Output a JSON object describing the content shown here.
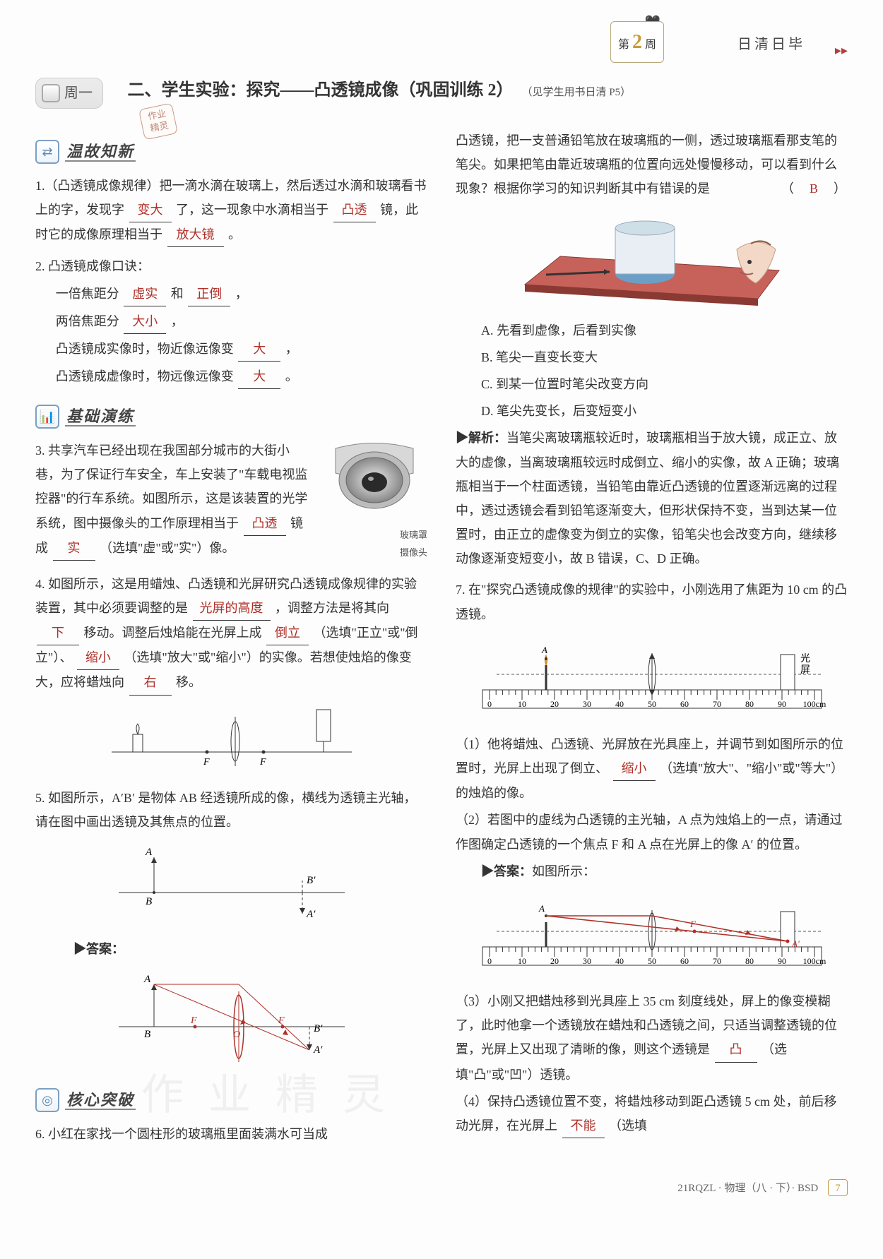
{
  "header": {
    "week_prefix": "第",
    "week_num": "2",
    "week_suffix": "周",
    "slogan": "日清日毕"
  },
  "day_badge": "周一",
  "title": "二、学生实验：探究——凸透镜成像（巩固训练 2）",
  "title_note": "（见学生用书日清 P5）",
  "stamp_line1": "作业",
  "stamp_line2": "精灵",
  "sections": {
    "s1_title": "温故知新",
    "s2_title": "基础演练",
    "s3_title": "核心突破"
  },
  "q1": {
    "lead": "1.（凸透镜成像规律）把一滴水滴在玻璃上，然后透过水滴和玻璃看书上的字，发现字",
    "b1": "变大",
    "mid1": "了，这一现象中水滴相当于",
    "b2": "凸透",
    "mid2": "镜，此时它的成像原理相当于",
    "b3": "放大镜",
    "tail": "。"
  },
  "q2": {
    "lead": "2. 凸透镜成像口诀：",
    "l1a": "一倍焦距分",
    "b1": "虚实",
    "l1b": "和",
    "b2": "正倒",
    "l1c": "，",
    "l2a": "两倍焦距分",
    "b3": "大小",
    "l2b": "，",
    "l3a": "凸透镜成实像时，物近像远像变",
    "b4": "大",
    "l3b": "，",
    "l4a": "凸透镜成虚像时，物远像远像变",
    "b5": "大",
    "l4b": "。"
  },
  "q3": {
    "text_a": "3. 共享汽车已经出现在我国部分城市的大街小巷，为了保证行车安全，车上安装了\"车载电视监控器\"的行车系统。如图所示，这是该装置的光学系统，图中摄像头的工作原理相当于",
    "b1": "凸透",
    "mid1": "镜成",
    "b2": "实",
    "tail": "（选填\"虚\"或\"实\"）像。",
    "cam_label1": "玻璃罩",
    "cam_label2": "摄像头"
  },
  "q4": {
    "text_a": "4. 如图所示，这是用蜡烛、凸透镜和光屏研究凸透镜成像规律的实验装置，其中必须要调整的是",
    "b1": "光屏的高度",
    "mid1": "，调整方法是将其向",
    "b2": "下",
    "mid2": "移动。调整后烛焰能在光屏上成",
    "b3": "倒立",
    "mid3": "（选填\"正立\"或\"倒立\"）、",
    "b4": "缩小",
    "mid4": "（选填\"放大\"或\"缩小\"）的实像。若想使烛焰的像变大，应将蜡烛向",
    "b5": "右",
    "tail": "移。"
  },
  "q5": {
    "text": "5. 如图所示，A′B′ 是物体 AB 经透镜所成的像，横线为透镜主光轴，请在图中画出透镜及其焦点的位置。",
    "answer_label": "▶答案："
  },
  "q6": {
    "text_a": "6. 小红在家找一个圆柱形的玻璃瓶里面装满水可当成凸透镜，把一支普通铅笔放在玻璃瓶的一侧，透过玻璃瓶看那支笔的笔尖。如果把笔由靠近玻璃瓶的位置向远处慢慢移动，可以看到什么现象？根据你学习的知识判断其中有错误的是",
    "answer": "B",
    "optA": "A. 先看到虚像，后看到实像",
    "optB": "B. 笔尖一直变长变大",
    "optC": "C. 到某一位置时笔尖改变方向",
    "optD": "D. 笔尖先变长，后变短变小",
    "analysis_label": "▶解析：",
    "analysis": "当笔尖离玻璃瓶较近时，玻璃瓶相当于放大镜，成正立、放大的虚像，当离玻璃瓶较远时成倒立、缩小的实像，故 A 正确；玻璃瓶相当于一个柱面透镜，当铅笔由靠近凸透镜的位置逐渐远离的过程中，透过透镜会看到铅笔逐渐变大，但形状保持不变，当到达某一位置时，由正立的虚像变为倒立的实像，铅笔尖也会改变方向，继续移动像逐渐变短变小，故 B 错误，C、D 正确。"
  },
  "q7": {
    "lead": "7. 在\"探究凸透镜成像的规律\"的实验中，小刚选用了焦距为 10 cm 的凸透镜。",
    "ruler_label_screen": "光屏",
    "p1a": "（1）他将蜡烛、凸透镜、光屏放在光具座上，并调节到如图所示的位置时，光屏上出现了倒立、",
    "p1b1": "缩小",
    "p1b": "（选填\"放大\"、\"缩小\"或\"等大\"）的烛焰的像。",
    "p2": "（2）若图中的虚线为凸透镜的主光轴，A 点为烛焰上的一点，请通过作图确定凸透镜的一个焦点 F 和 A 点在光屏上的像 A′ 的位置。",
    "p2_answer_label": "▶答案：",
    "p2_answer_text": "如图所示：",
    "p3a": "（3）小刚又把蜡烛移到光具座上 35 cm 刻度线处，屏上的像变模糊了，此时他拿一个透镜放在蜡烛和凸透镜之间，只适当调整透镜的位置，光屏上又出现了清晰的像，则这个透镜是",
    "p3b1": "凸",
    "p3b": "（选填\"凸\"或\"凹\"）透镜。",
    "p4a": "（4）保持凸透镜位置不变，将蜡烛移动到距凸透镜 5 cm 处，前后移动光屏，在光屏上",
    "p4b1": "不能",
    "p4b": "（选填"
  },
  "ruler": {
    "ticks": [
      0,
      10,
      20,
      30,
      40,
      50,
      60,
      70,
      80,
      90,
      100
    ],
    "unit": "cm",
    "last_label": "100cm"
  },
  "footer": {
    "code": "21RQZL · 物理（八 · 下）· BSD",
    "page": "7"
  }
}
